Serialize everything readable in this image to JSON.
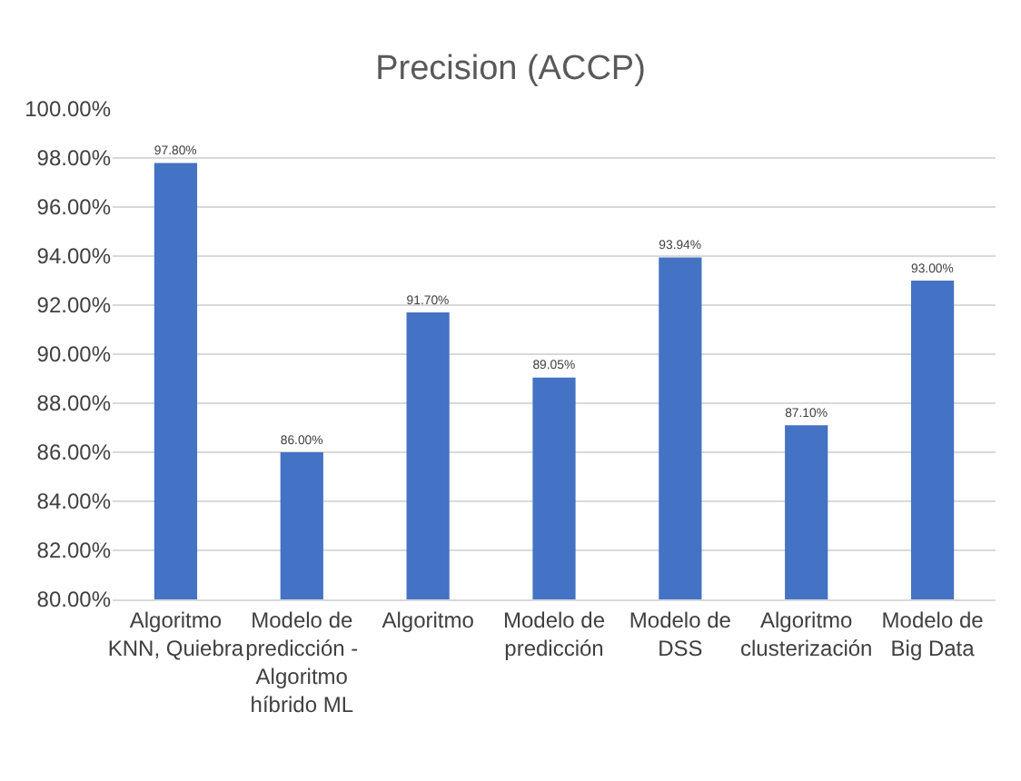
{
  "chart_data": {
    "type": "bar",
    "title": "Precision (ACCP)",
    "categories": [
      "Algoritmo KNN, Quiebra",
      "Modelo de predicción - Algoritmo híbrido ML",
      "Algoritmo",
      "Modelo de predicción",
      "Modelo de DSS",
      "Algoritmo clusterización",
      "Modelo de Big Data"
    ],
    "values": [
      97.8,
      86.0,
      91.7,
      89.05,
      93.94,
      87.1,
      93.0
    ],
    "value_labels": [
      "97.80%",
      "86.00%",
      "91.70%",
      "89.05%",
      "93.94%",
      "87.10%",
      "93.00%"
    ],
    "color": "#4472c4",
    "ylim": [
      80,
      100
    ],
    "yticks": [
      {
        "value": 80,
        "label": "80.00%"
      },
      {
        "value": 82,
        "label": "82.00%"
      },
      {
        "value": 84,
        "label": "84.00%"
      },
      {
        "value": 86,
        "label": "86.00%"
      },
      {
        "value": 88,
        "label": "88.00%"
      },
      {
        "value": 90,
        "label": "90.00%"
      },
      {
        "value": 92,
        "label": "92.00%"
      },
      {
        "value": 94,
        "label": "94.00%"
      },
      {
        "value": 96,
        "label": "96.00%"
      },
      {
        "value": 98,
        "label": "98.00%"
      },
      {
        "value": 100,
        "label": "100.00%"
      }
    ],
    "grid": true
  }
}
